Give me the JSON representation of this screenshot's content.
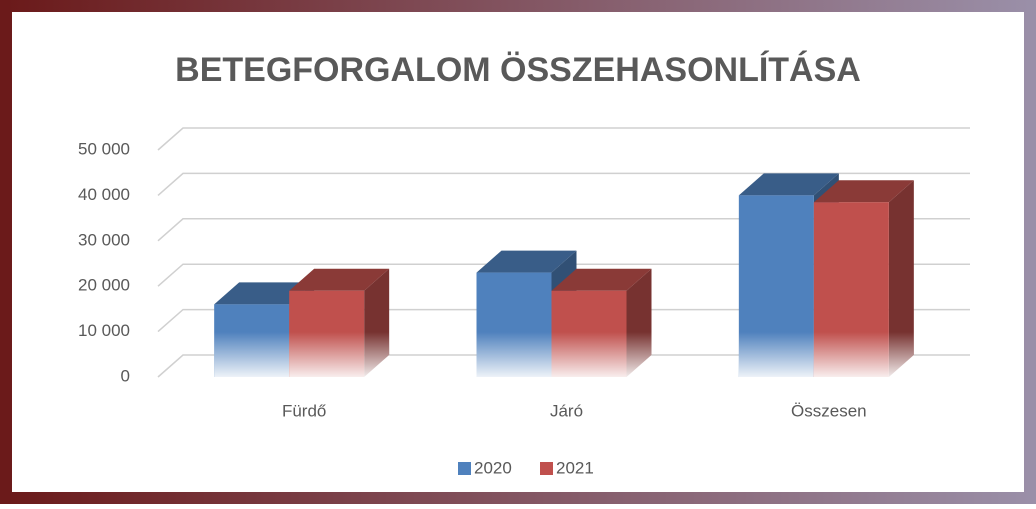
{
  "chart_data": {
    "type": "bar3d",
    "title": "BETEGFORGALOM ÖSSZEHASONLÍTÁSA",
    "categories": [
      "Fürdő",
      "Járó",
      "Összesen"
    ],
    "series": [
      {
        "name": "2020",
        "color": "#4f81bd",
        "values": [
          16000,
          23000,
          40000
        ]
      },
      {
        "name": "2021",
        "color": "#c0504d",
        "values": [
          19000,
          19000,
          38500
        ]
      }
    ],
    "ylim": [
      0,
      50000
    ],
    "yticks": [
      0,
      {
        "value": 10000,
        "label": "10 000"
      },
      {
        "value": 20000,
        "label": "20 000"
      },
      {
        "value": 30000,
        "label": "30 000"
      },
      {
        "value": 40000,
        "label": "40 000"
      },
      {
        "value": 50000,
        "label": "50 000"
      }
    ],
    "grid": true,
    "legend": "bottom"
  }
}
